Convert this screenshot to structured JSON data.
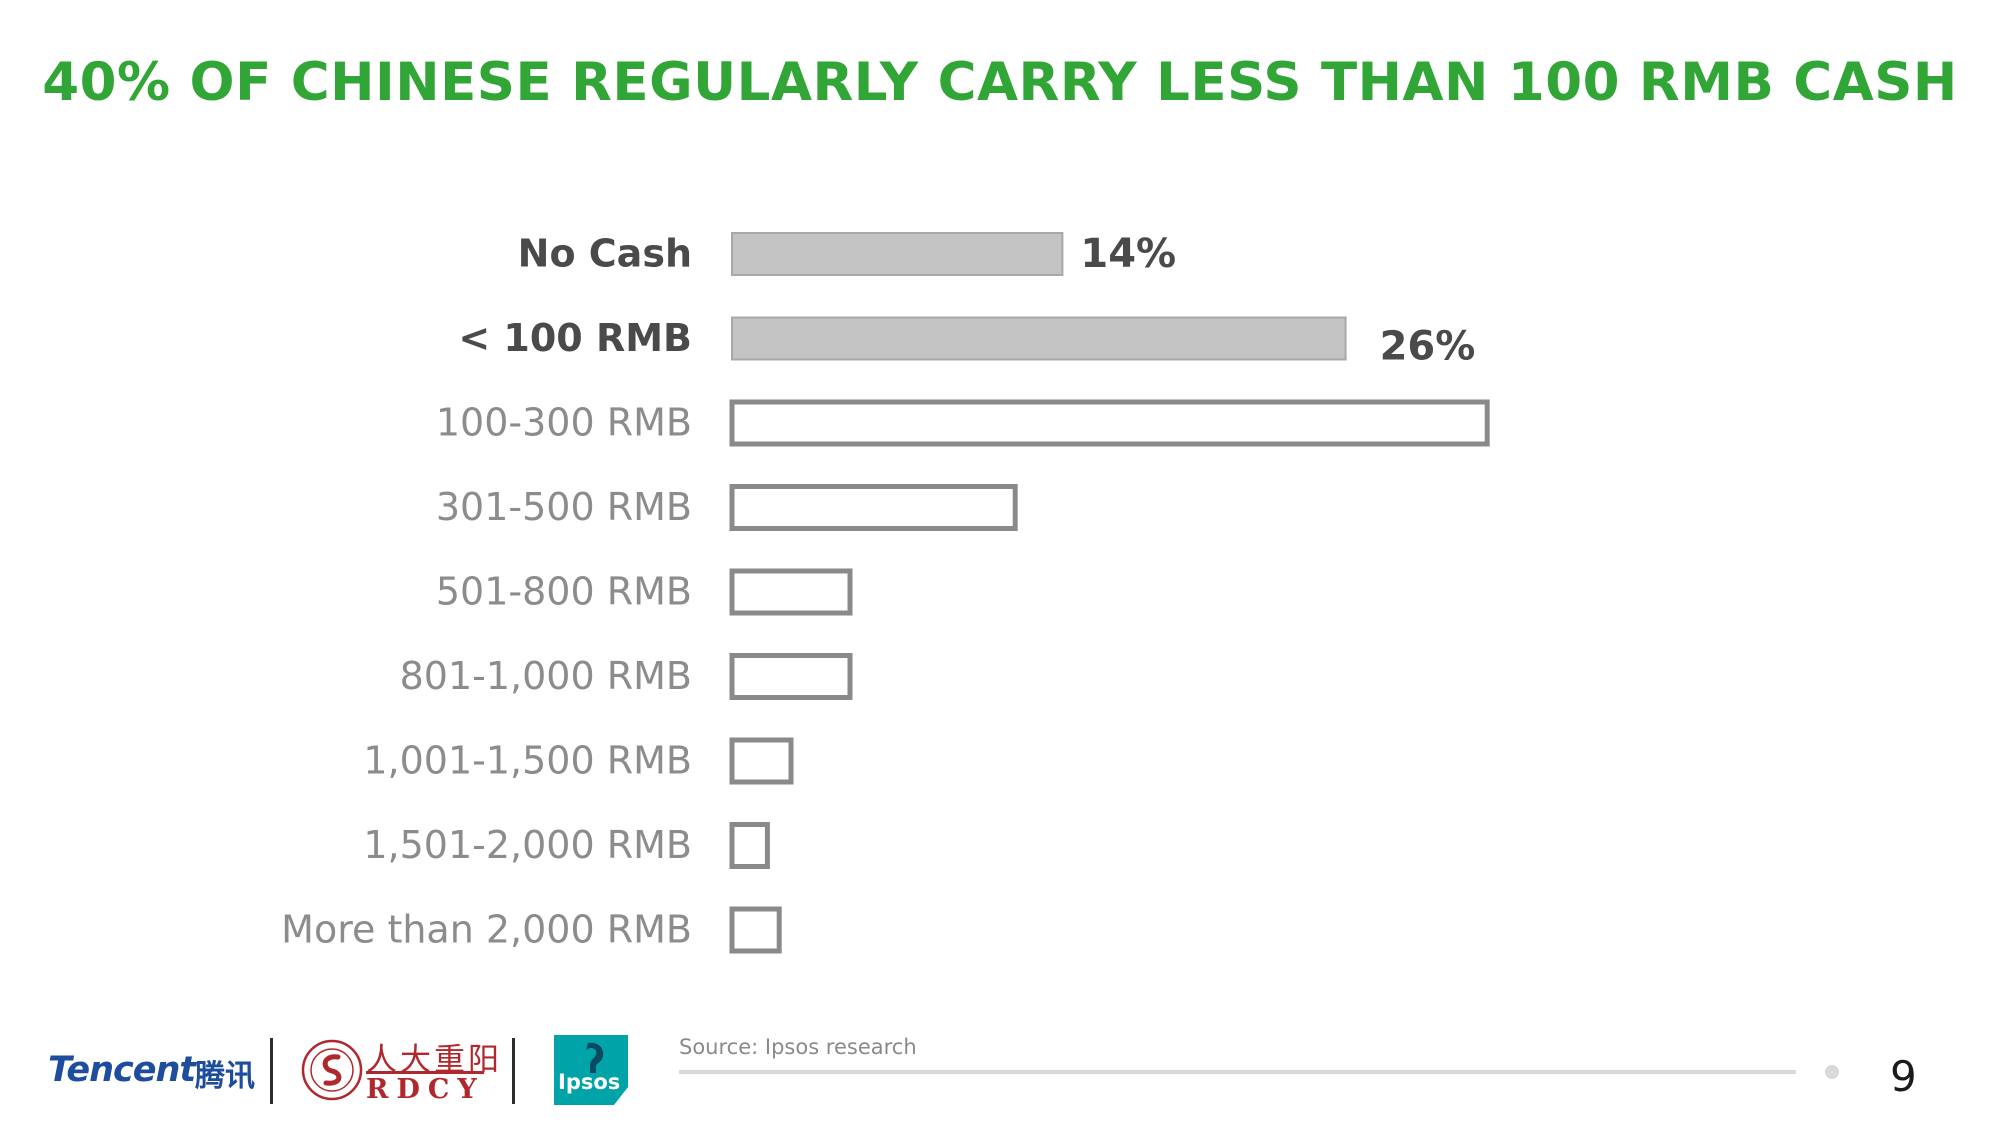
{
  "slide": {
    "title": "40% OF CHINESE REGULARLY CARRY LESS THAN 100 RMB CASH",
    "source": "Source: Ipsos research",
    "page_number": "9"
  },
  "logos": {
    "tencent": "Tencent",
    "tencent_cn": "腾讯",
    "rdcy_cn": "人大重阳",
    "rdcy_en": "RDCY",
    "ipsos": "Ipsos"
  },
  "colors": {
    "title": "#31a637",
    "highlight_fill": "#c3c3c3",
    "highlight_stroke": "#a8a8a8",
    "outline_stroke": "#8a8a8a",
    "bold_label": "#4a4a4a",
    "light_label": "#8c8c8c",
    "value_label": "#4a4a4a",
    "source_text": "#8a8a8a",
    "tencent_blue": "#1f4d9e",
    "rdcy_red": "#b0282e",
    "ipsos_teal": "#00a3a8",
    "footer_rule": "#d9d9d9"
  },
  "chart_data": {
    "type": "bar",
    "orientation": "horizontal",
    "title": "40% OF CHINESE REGULARLY CARRY LESS THAN 100 RMB CASH",
    "xlim": [
      0,
      40
    ],
    "categories": [
      "No Cash",
      "< 100 RMB",
      "100-300 RMB",
      "301-500 RMB",
      "501-800 RMB",
      "801-1,000 RMB",
      "1,001-1,500 RMB",
      "1,501-2,000 RMB",
      "More than 2,000 RMB"
    ],
    "values": [
      14,
      26,
      32,
      12,
      5,
      5,
      2.5,
      1.5,
      2
    ],
    "highlighted": [
      true,
      true,
      false,
      false,
      false,
      false,
      false,
      false,
      false
    ],
    "value_labels": [
      "14%",
      "26%",
      "",
      "",
      "",
      "",
      "",
      "",
      ""
    ]
  }
}
